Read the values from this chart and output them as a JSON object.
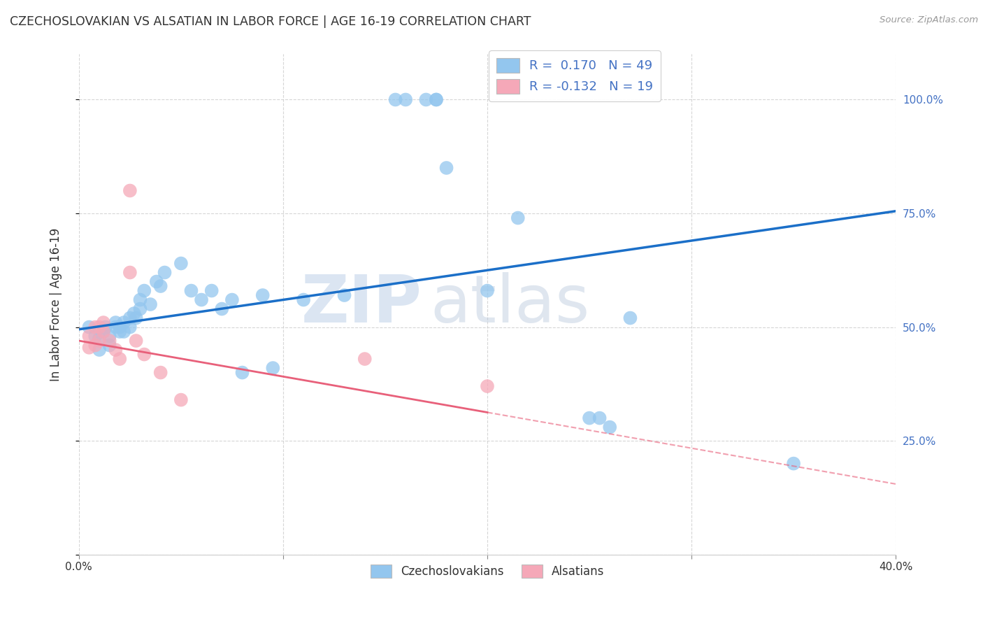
{
  "title": "CZECHOSLOVAKIAN VS ALSATIAN IN LABOR FORCE | AGE 16-19 CORRELATION CHART",
  "source": "Source: ZipAtlas.com",
  "ylabel": "In Labor Force | Age 16-19",
  "xlim": [
    0.0,
    0.4
  ],
  "ylim": [
    0.0,
    1.1
  ],
  "watermark_zip": "ZIP",
  "watermark_atlas": "atlas",
  "legend_blue_r": "R =  0.170",
  "legend_blue_n": "N = 49",
  "legend_pink_r": "R = -0.132",
  "legend_pink_n": "N = 19",
  "blue_color": "#93C6EE",
  "pink_color": "#F5A8B8",
  "line_blue": "#1B6FC8",
  "line_pink": "#E8607A",
  "background": "#FFFFFF",
  "grid_color": "#CCCCCC",
  "czechoslovakian_x": [
    0.005,
    0.008,
    0.01,
    0.01,
    0.012,
    0.013,
    0.015,
    0.015,
    0.018,
    0.018,
    0.02,
    0.02,
    0.022,
    0.022,
    0.025,
    0.025,
    0.027,
    0.028,
    0.03,
    0.03,
    0.032,
    0.035,
    0.038,
    0.04,
    0.042,
    0.05,
    0.055,
    0.06,
    0.065,
    0.07,
    0.075,
    0.08,
    0.09,
    0.095,
    0.11,
    0.13,
    0.155,
    0.16,
    0.17,
    0.175,
    0.175,
    0.18,
    0.2,
    0.215,
    0.25,
    0.255,
    0.26,
    0.27,
    0.35
  ],
  "czechoslovakian_y": [
    0.5,
    0.48,
    0.475,
    0.45,
    0.49,
    0.5,
    0.48,
    0.46,
    0.5,
    0.51,
    0.49,
    0.5,
    0.51,
    0.49,
    0.52,
    0.5,
    0.53,
    0.52,
    0.56,
    0.54,
    0.58,
    0.55,
    0.6,
    0.59,
    0.62,
    0.64,
    0.58,
    0.56,
    0.58,
    0.54,
    0.56,
    0.4,
    0.57,
    0.41,
    0.56,
    0.57,
    1.0,
    1.0,
    1.0,
    1.0,
    1.0,
    0.85,
    0.58,
    0.74,
    0.3,
    0.3,
    0.28,
    0.52,
    0.2
  ],
  "alsatian_x": [
    0.005,
    0.005,
    0.008,
    0.008,
    0.01,
    0.01,
    0.012,
    0.012,
    0.015,
    0.018,
    0.02,
    0.025,
    0.025,
    0.028,
    0.032,
    0.04,
    0.05,
    0.14,
    0.2
  ],
  "alsatian_y": [
    0.48,
    0.455,
    0.46,
    0.5,
    0.47,
    0.5,
    0.51,
    0.49,
    0.47,
    0.45,
    0.43,
    0.8,
    0.62,
    0.47,
    0.44,
    0.4,
    0.34,
    0.43,
    0.37
  ],
  "blue_line_x0": 0.0,
  "blue_line_y0": 0.495,
  "blue_line_x1": 0.4,
  "blue_line_y1": 0.755,
  "pink_line_x0": 0.0,
  "pink_line_y0": 0.47,
  "pink_line_x1": 0.4,
  "pink_line_y1": 0.155
}
